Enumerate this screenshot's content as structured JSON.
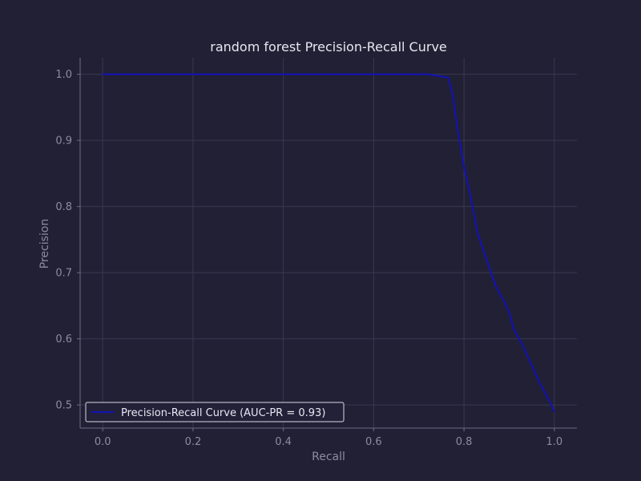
{
  "theme": {
    "background": "#222034",
    "grid": "#3a3850",
    "axis": "#6f6d84",
    "text": "#e7e7f2",
    "muted": "#8d8ba0",
    "line": "#1212b8"
  },
  "chart_data": {
    "type": "line",
    "title": "random forest Precision-Recall Curve",
    "xlabel": "Recall",
    "ylabel": "Precision",
    "xlim": [
      -0.05,
      1.05
    ],
    "ylim": [
      0.465,
      1.025
    ],
    "grid": true,
    "legend_position": "lower-left",
    "xticks": [
      "0.0",
      "0.2",
      "0.4",
      "0.6",
      "0.8",
      "1.0"
    ],
    "yticks": [
      "0.5",
      "0.6",
      "0.7",
      "0.8",
      "0.9",
      "1.0"
    ],
    "series": [
      {
        "name": "Precision-Recall Curve (AUC-PR = 0.93)",
        "color": "#1212b8",
        "x": [
          0.0,
          0.72,
          0.765,
          0.775,
          0.785,
          0.79,
          0.8,
          0.815,
          0.83,
          0.85,
          0.87,
          0.89,
          0.9,
          0.91,
          0.93,
          0.95,
          0.97,
          0.99,
          1.0
        ],
        "y": [
          1.0,
          1.0,
          0.995,
          0.97,
          0.92,
          0.9,
          0.86,
          0.815,
          0.76,
          0.72,
          0.68,
          0.655,
          0.64,
          0.615,
          0.59,
          0.56,
          0.53,
          0.505,
          0.49
        ]
      }
    ]
  }
}
